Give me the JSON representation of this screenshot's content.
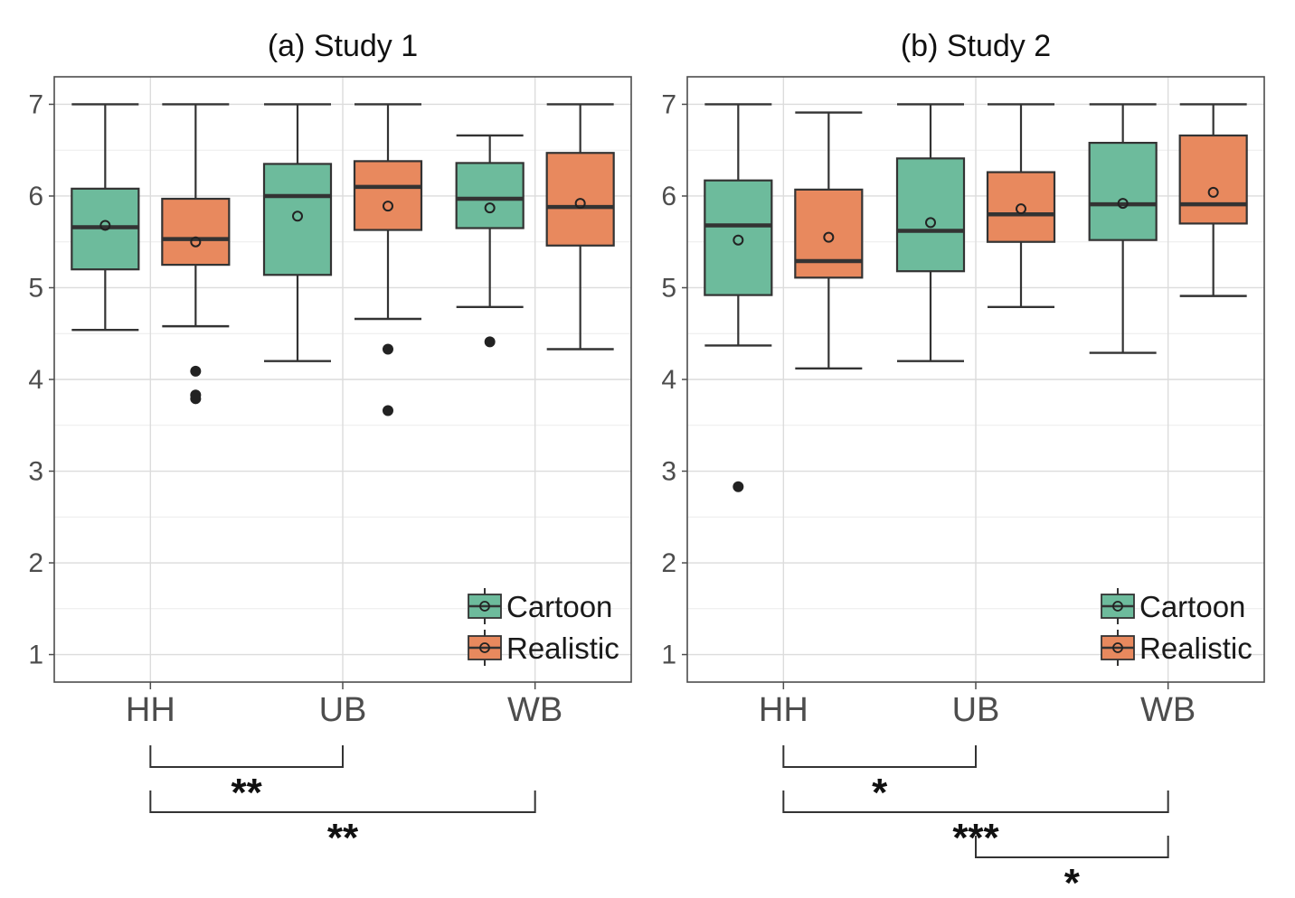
{
  "chart_data": [
    {
      "type": "box",
      "title": "(a) Study 1",
      "xlabel": "",
      "ylabel": "",
      "ylim": [
        0.7,
        7.3
      ],
      "yticks": [
        1,
        2,
        3,
        4,
        5,
        6,
        7
      ],
      "categories": [
        "HH",
        "UB",
        "WB"
      ],
      "grid": true,
      "legend_position": "bottom-right",
      "series": [
        {
          "name": "Cartoon",
          "color": "#6dbb9c",
          "boxes": [
            {
              "category": "HH",
              "whisker_low": 4.54,
              "q1": 5.2,
              "median": 5.66,
              "q3": 6.08,
              "whisker_high": 7.0,
              "mean": 5.68,
              "outliers": []
            },
            {
              "category": "UB",
              "whisker_low": 4.2,
              "q1": 5.14,
              "median": 6.0,
              "q3": 6.35,
              "whisker_high": 7.0,
              "mean": 5.78,
              "outliers": []
            },
            {
              "category": "WB",
              "whisker_low": 4.79,
              "q1": 5.65,
              "median": 5.97,
              "q3": 6.36,
              "whisker_high": 6.66,
              "mean": 5.87,
              "outliers": [
                4.41
              ]
            }
          ]
        },
        {
          "name": "Realistic",
          "color": "#e8895e",
          "boxes": [
            {
              "category": "HH",
              "whisker_low": 4.58,
              "q1": 5.25,
              "median": 5.53,
              "q3": 5.97,
              "whisker_high": 7.0,
              "mean": 5.5,
              "outliers": [
                4.09,
                3.83,
                3.79
              ]
            },
            {
              "category": "UB",
              "whisker_low": 4.66,
              "q1": 5.63,
              "median": 6.1,
              "q3": 6.38,
              "whisker_high": 7.0,
              "mean": 5.89,
              "outliers": [
                4.33,
                3.66
              ]
            },
            {
              "category": "WB",
              "whisker_low": 4.33,
              "q1": 5.46,
              "median": 5.88,
              "q3": 6.47,
              "whisker_high": 7.0,
              "mean": 5.92,
              "outliers": []
            }
          ]
        }
      ],
      "significance": [
        {
          "from": "HH",
          "to": "UB",
          "label": "**"
        },
        {
          "from": "HH",
          "to": "WB",
          "label": "**"
        }
      ]
    },
    {
      "type": "box",
      "title": "(b) Study 2",
      "xlabel": "",
      "ylabel": "",
      "ylim": [
        0.7,
        7.3
      ],
      "yticks": [
        1,
        2,
        3,
        4,
        5,
        6,
        7
      ],
      "categories": [
        "HH",
        "UB",
        "WB"
      ],
      "grid": true,
      "legend_position": "bottom-right",
      "series": [
        {
          "name": "Cartoon",
          "color": "#6dbb9c",
          "boxes": [
            {
              "category": "HH",
              "whisker_low": 4.37,
              "q1": 4.92,
              "median": 5.68,
              "q3": 6.17,
              "whisker_high": 7.0,
              "mean": 5.52,
              "outliers": [
                2.83
              ]
            },
            {
              "category": "UB",
              "whisker_low": 4.2,
              "q1": 5.18,
              "median": 5.62,
              "q3": 6.41,
              "whisker_high": 7.0,
              "mean": 5.71,
              "outliers": []
            },
            {
              "category": "WB",
              "whisker_low": 4.29,
              "q1": 5.52,
              "median": 5.91,
              "q3": 6.58,
              "whisker_high": 7.0,
              "mean": 5.92,
              "outliers": []
            }
          ]
        },
        {
          "name": "Realistic",
          "color": "#e8895e",
          "boxes": [
            {
              "category": "HH",
              "whisker_low": 4.12,
              "q1": 5.11,
              "median": 5.29,
              "q3": 6.07,
              "whisker_high": 6.91,
              "mean": 5.55,
              "outliers": []
            },
            {
              "category": "UB",
              "whisker_low": 4.79,
              "q1": 5.5,
              "median": 5.8,
              "q3": 6.26,
              "whisker_high": 7.0,
              "mean": 5.86,
              "outliers": []
            },
            {
              "category": "WB",
              "whisker_low": 4.91,
              "q1": 5.7,
              "median": 5.91,
              "q3": 6.66,
              "whisker_high": 7.0,
              "mean": 6.04,
              "outliers": []
            }
          ]
        }
      ],
      "significance": [
        {
          "from": "HH",
          "to": "UB",
          "label": "*"
        },
        {
          "from": "HH",
          "to": "WB",
          "label": "***"
        },
        {
          "from": "UB",
          "to": "WB",
          "label": "*"
        }
      ]
    }
  ]
}
